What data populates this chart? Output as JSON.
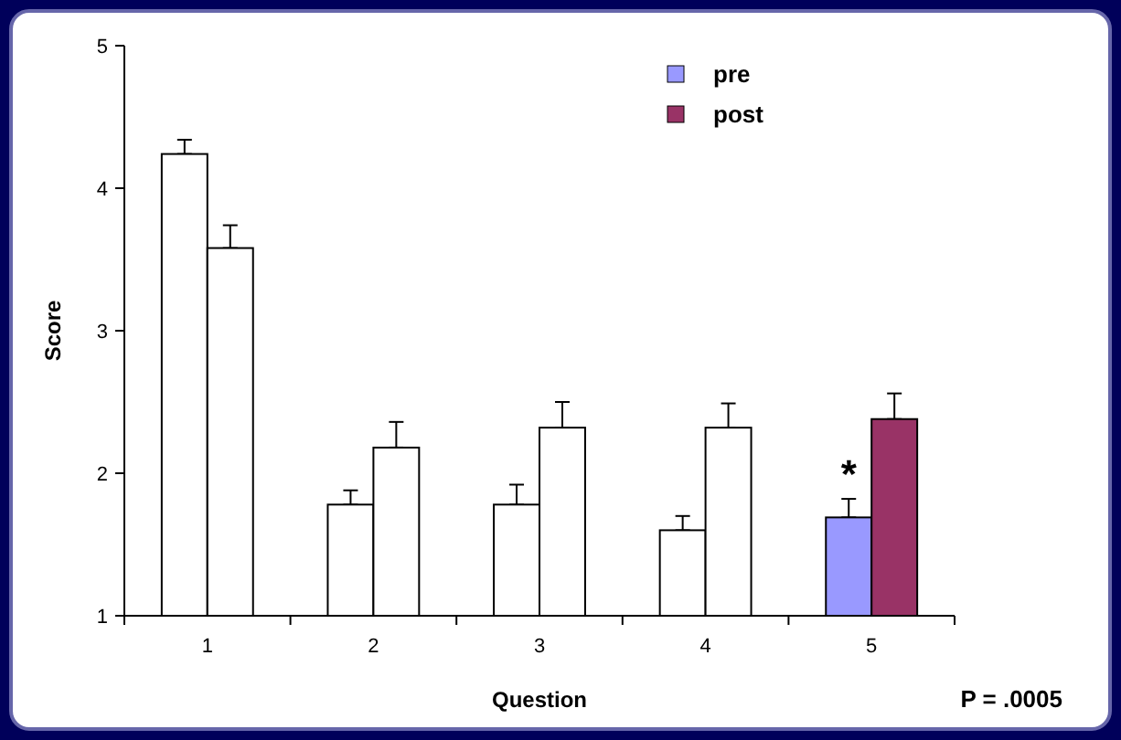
{
  "chart_data": {
    "type": "bar",
    "xlabel": "Question",
    "ylabel": "Score",
    "categories": [
      "1",
      "2",
      "3",
      "4",
      "5"
    ],
    "series": [
      {
        "name": "pre",
        "color": "#9999ff",
        "colors": [
          "#ffffff",
          "#ffffff",
          "#ffffff",
          "#ffffff",
          "#9999ff"
        ],
        "values": [
          4.24,
          1.78,
          1.78,
          1.6,
          1.69
        ],
        "errors": [
          [
            4.24,
            4.34
          ],
          [
            1.78,
            1.88
          ],
          [
            1.78,
            1.92
          ],
          [
            1.6,
            1.7
          ],
          [
            1.69,
            1.82
          ]
        ]
      },
      {
        "name": "post",
        "color": "#993366",
        "colors": [
          "#ffffff",
          "#ffffff",
          "#ffffff",
          "#ffffff",
          "#993366"
        ],
        "values": [
          3.58,
          2.18,
          2.32,
          2.32,
          2.38
        ],
        "errors": [
          [
            3.58,
            3.74
          ],
          [
            2.18,
            2.36
          ],
          [
            2.32,
            2.5
          ],
          [
            2.32,
            2.49
          ],
          [
            2.38,
            2.56
          ]
        ]
      }
    ],
    "ylim": [
      1,
      5
    ],
    "yticks": [
      1,
      2,
      3,
      4,
      5
    ],
    "grid": false,
    "legend": "top right",
    "annotations": [
      {
        "text": "*",
        "x": "5",
        "y": 1.9
      },
      "P = .0005"
    ]
  }
}
